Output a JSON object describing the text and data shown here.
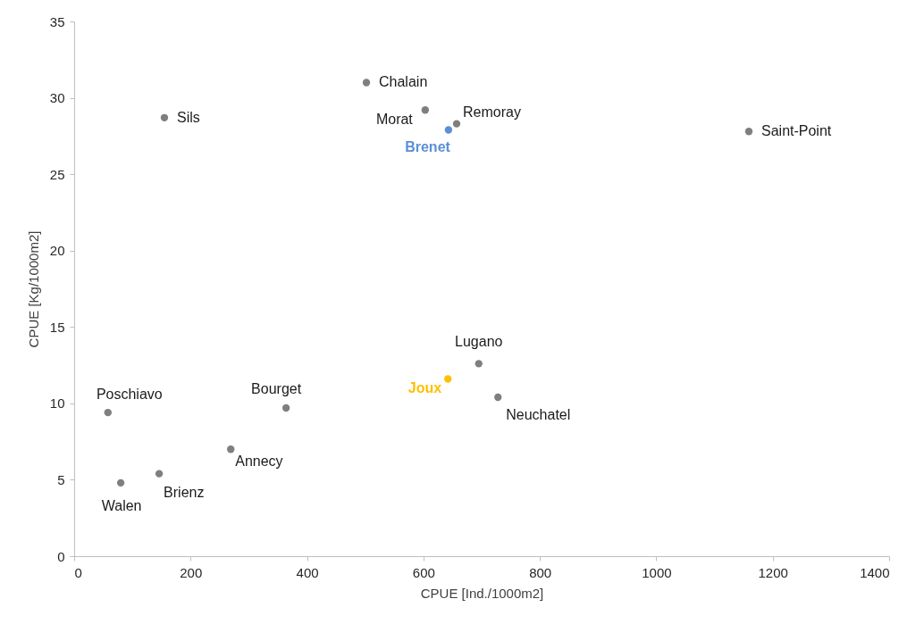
{
  "chart_data": {
    "type": "scatter",
    "xlabel": "CPUE [Ind./1000m2]",
    "ylabel": "CPUE [Kg/1000m2]",
    "x": [
      155,
      502,
      603,
      657,
      643,
      1159,
      695,
      642,
      728,
      364,
      58,
      269,
      146,
      80
    ],
    "series": [
      {
        "color": "#7f7f7f",
        "values": [
          28.7,
          31.0,
          29.2,
          28.3,
          27.9,
          27.8,
          12.6,
          11.6,
          10.4,
          9.7,
          9.4,
          7.0,
          5.4,
          4.8
        ],
        "colors": [
          "#7f7f7f",
          "#7f7f7f",
          "#7f7f7f",
          "#7f7f7f",
          "#5b8fd6",
          "#7f7f7f",
          "#7f7f7f",
          "#ffc000",
          "#7f7f7f",
          "#7f7f7f",
          "#7f7f7f",
          "#7f7f7f",
          "#7f7f7f",
          "#7f7f7f"
        ]
      }
    ],
    "annotations": [
      {
        "text": "Sils",
        "x": 155,
        "y": 28.7
      },
      {
        "text": "Chalain",
        "x": 502,
        "y": 31.0
      },
      {
        "text": "Morat",
        "x": 603,
        "y": 29.2
      },
      {
        "text": "Remoray",
        "x": 657,
        "y": 28.3
      },
      {
        "text": "Brenet",
        "x": 643,
        "y": 27.9
      },
      {
        "text": "Saint-Point",
        "x": 1159,
        "y": 27.8
      },
      {
        "text": "Lugano",
        "x": 695,
        "y": 12.6
      },
      {
        "text": "Joux",
        "x": 642,
        "y": 11.6
      },
      {
        "text": "Neuchatel",
        "x": 728,
        "y": 10.4
      },
      {
        "text": "Bourget",
        "x": 364,
        "y": 9.7
      },
      {
        "text": "Poschiavo",
        "x": 58,
        "y": 9.4
      },
      {
        "text": "Annecy",
        "x": 269,
        "y": 7.0
      },
      {
        "text": "Brienz",
        "x": 146,
        "y": 5.4
      },
      {
        "text": "Walen",
        "x": 80,
        "y": 4.8
      }
    ],
    "xlim": [
      0,
      1400
    ],
    "xticks": [
      0,
      200,
      400,
      600,
      800,
      1000,
      1200,
      1400
    ],
    "ylim": [
      0,
      35
    ],
    "yticks": [
      0,
      5,
      10,
      15,
      20,
      25,
      30,
      35
    ],
    "grid": false,
    "marker": "circle"
  }
}
